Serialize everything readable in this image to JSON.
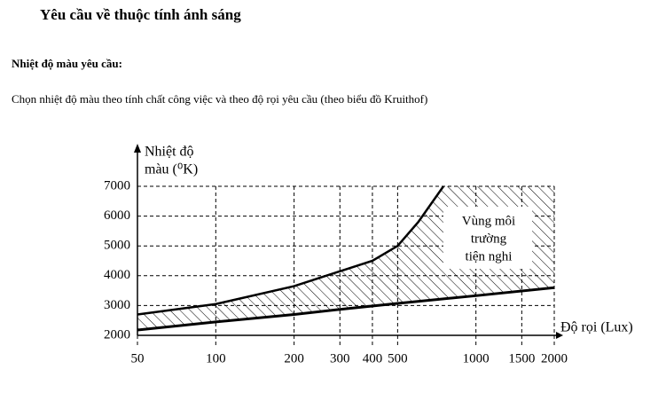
{
  "header": {
    "title": "Yêu cầu về thuộc tính ánh sáng"
  },
  "section": {
    "heading": "Nhiệt độ màu yêu cầu:",
    "paragraph": "Chọn nhiệt độ màu theo tính chất công việc và theo độ rọi yêu cầu (theo biểu đồ Kruithof)"
  },
  "chart_data": {
    "type": "area-band",
    "y_label": [
      "Nhiệt độ",
      "màu (⁰K)"
    ],
    "x_label": "Độ rọi (Lux)",
    "annotation": [
      "Vùng môi",
      "trường",
      "tiện nghi"
    ],
    "xscale": "log",
    "xlim": [
      50,
      2000
    ],
    "xticks": [
      50,
      100,
      200,
      300,
      400,
      500,
      1000,
      1500,
      2000
    ],
    "ylim": [
      2000,
      7000
    ],
    "yticks": [
      2000,
      3000,
      4000,
      5000,
      6000,
      7000
    ],
    "grid": true,
    "series": [
      {
        "x": [
          50,
          100,
          200,
          300,
          400,
          500,
          600,
          750
        ],
        "values": [
          2700,
          3050,
          3650,
          4150,
          4500,
          5000,
          5800,
          7000
        ],
        "color": "#000000"
      },
      {
        "x": [
          50,
          100,
          200,
          300,
          500,
          1000,
          2000
        ],
        "values": [
          2180,
          2450,
          2700,
          2870,
          3070,
          3330,
          3600
        ],
        "color": "#000000"
      }
    ]
  }
}
